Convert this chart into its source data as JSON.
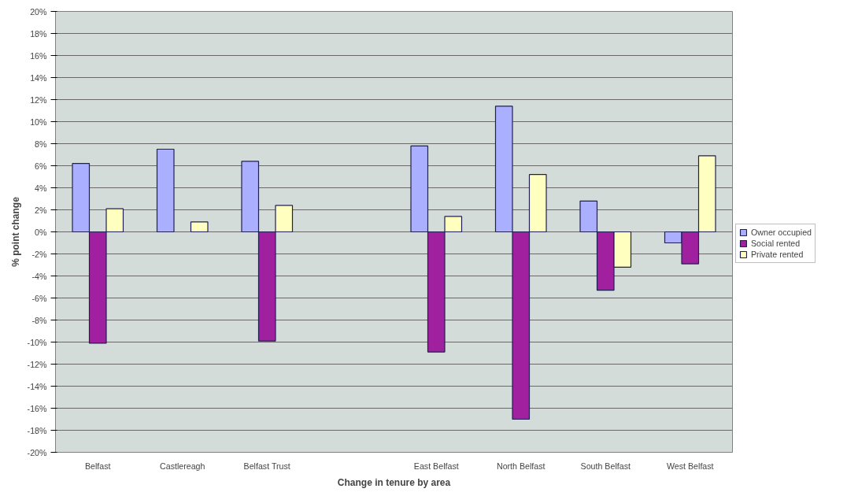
{
  "chart_data": {
    "type": "bar",
    "xlabel": "Change in tenure by area",
    "ylabel": "% point change",
    "categories": [
      "Belfast",
      "Castlereagh",
      "Belfast Trust",
      null,
      "East Belfast",
      "North Belfast",
      "South Belfast",
      "West Belfast"
    ],
    "series": [
      {
        "name": "Owner occupied",
        "color": "#aab0ff",
        "values": [
          6.2,
          7.5,
          6.4,
          null,
          7.8,
          11.4,
          2.8,
          -1.0
        ]
      },
      {
        "name": "Social rented",
        "color": "#a020a0",
        "values": [
          -10.1,
          null,
          -9.9,
          null,
          -10.9,
          -17.0,
          -5.3,
          -2.9
        ]
      },
      {
        "name": "Private rented",
        "color": "#ffffc0",
        "values": [
          2.1,
          0.9,
          2.4,
          null,
          1.4,
          5.2,
          -3.2,
          6.9
        ]
      }
    ],
    "ylim": [
      -20,
      20
    ],
    "yticks": [
      {
        "value": -20,
        "label": "-20%"
      },
      {
        "value": -18,
        "label": "-18%"
      },
      {
        "value": -16,
        "label": "-16%"
      },
      {
        "value": -14,
        "label": "-14%"
      },
      {
        "value": -12,
        "label": "-12%"
      },
      {
        "value": -10,
        "label": "-10%"
      },
      {
        "value": -8,
        "label": "-8%"
      },
      {
        "value": -6,
        "label": "-6%"
      },
      {
        "value": -4,
        "label": "-4%"
      },
      {
        "value": -2,
        "label": "-2%"
      },
      {
        "value": 0,
        "label": "0%"
      },
      {
        "value": 2,
        "label": "2%"
      },
      {
        "value": 4,
        "label": "4%"
      },
      {
        "value": 6,
        "label": "6%"
      },
      {
        "value": 8,
        "label": "8%"
      },
      {
        "value": 10,
        "label": "10%"
      },
      {
        "value": 12,
        "label": "12%"
      },
      {
        "value": 14,
        "label": "14%"
      },
      {
        "value": 16,
        "label": "16%"
      },
      {
        "value": 18,
        "label": "18%"
      },
      {
        "value": 20,
        "label": "20%"
      }
    ],
    "grid": "y",
    "legend": "right"
  }
}
